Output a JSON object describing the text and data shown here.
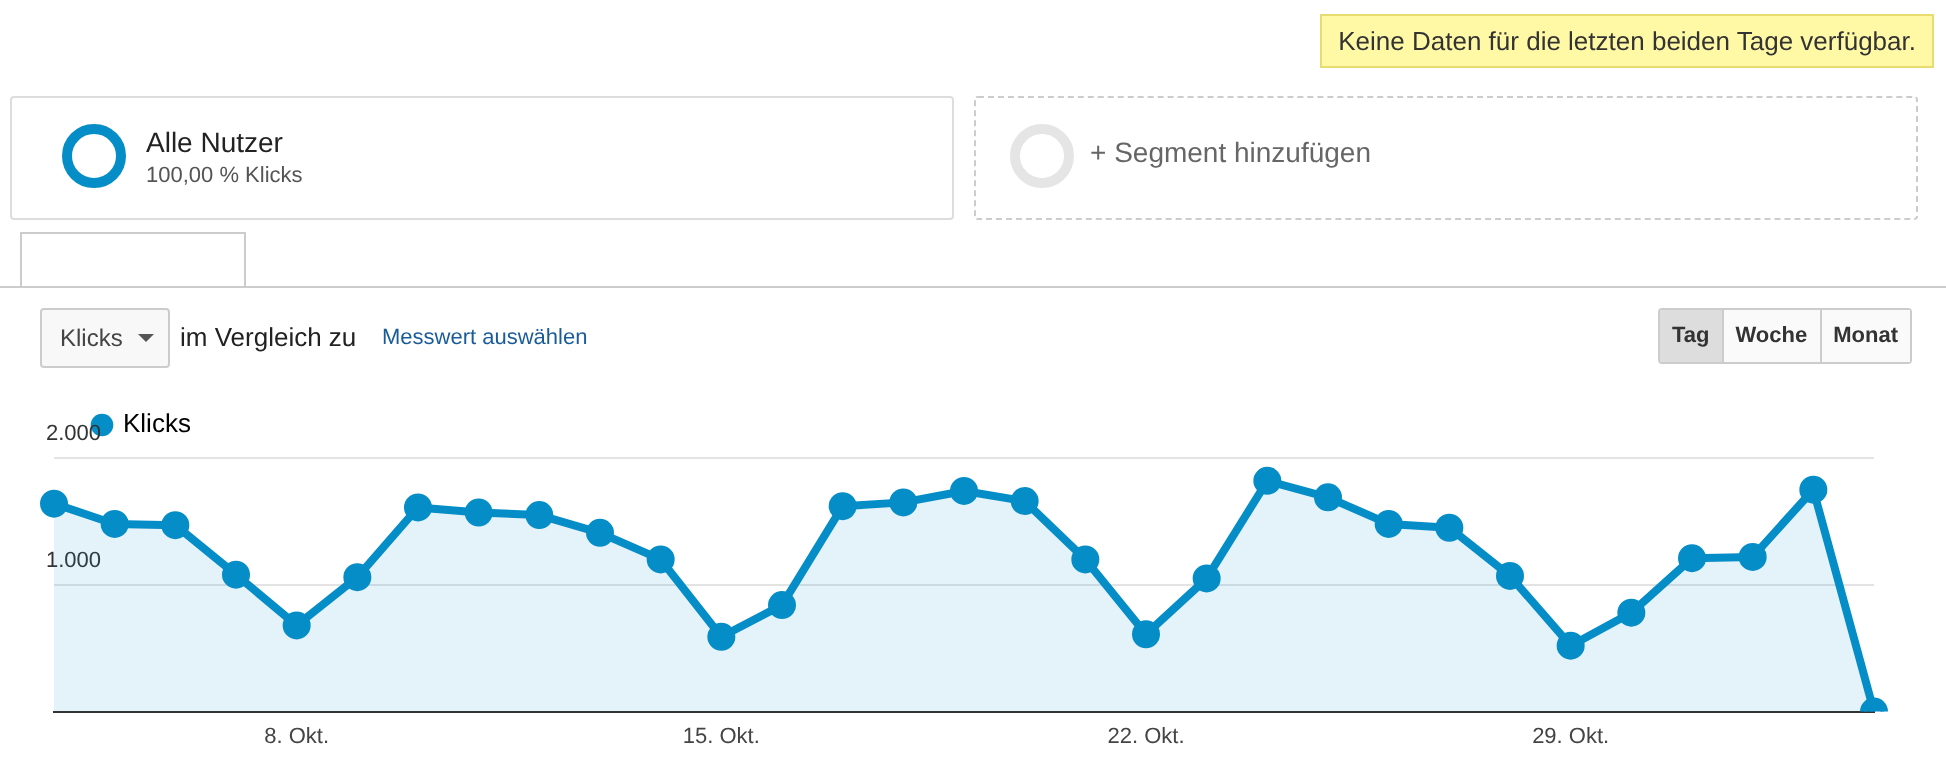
{
  "chart_data": {
    "type": "area",
    "categories": [
      null,
      null,
      null,
      null,
      "8. Okt.",
      null,
      null,
      null,
      null,
      null,
      null,
      "15. Okt.",
      null,
      null,
      null,
      null,
      null,
      null,
      "22. Okt.",
      null,
      null,
      null,
      null,
      null,
      null,
      "29. Okt.",
      null,
      null,
      null,
      null,
      null
    ],
    "series": [
      {
        "name": "Klicks",
        "color": "#058dc7",
        "values": [
          1640,
          1480,
          1470,
          1080,
          680,
          1060,
          1610,
          1570,
          1550,
          1410,
          1200,
          590,
          840,
          1620,
          1650,
          1740,
          1660,
          1200,
          610,
          1050,
          1820,
          1690,
          1480,
          1450,
          1070,
          520,
          780,
          1210,
          1220,
          1750,
          0
        ]
      }
    ],
    "ylim": [
      0,
      2000
    ],
    "yticks": [
      {
        "value": 1000,
        "label": "1.000"
      },
      {
        "value": 2000,
        "label": "2.000"
      }
    ],
    "grid": "y",
    "legend": "top left",
    "marker": "circle",
    "line_style": "solid",
    "annotations": [
      "Keine Daten für die letzten beiden Tage verfügbar.",
      "Alle Nutzer",
      "100,00 % Klicks",
      "+ Segment hinzufügen",
      "Klicks",
      "im Vergleich zu",
      "Messwert auswählen",
      "Tag",
      "Woche",
      "Monat"
    ]
  }
}
